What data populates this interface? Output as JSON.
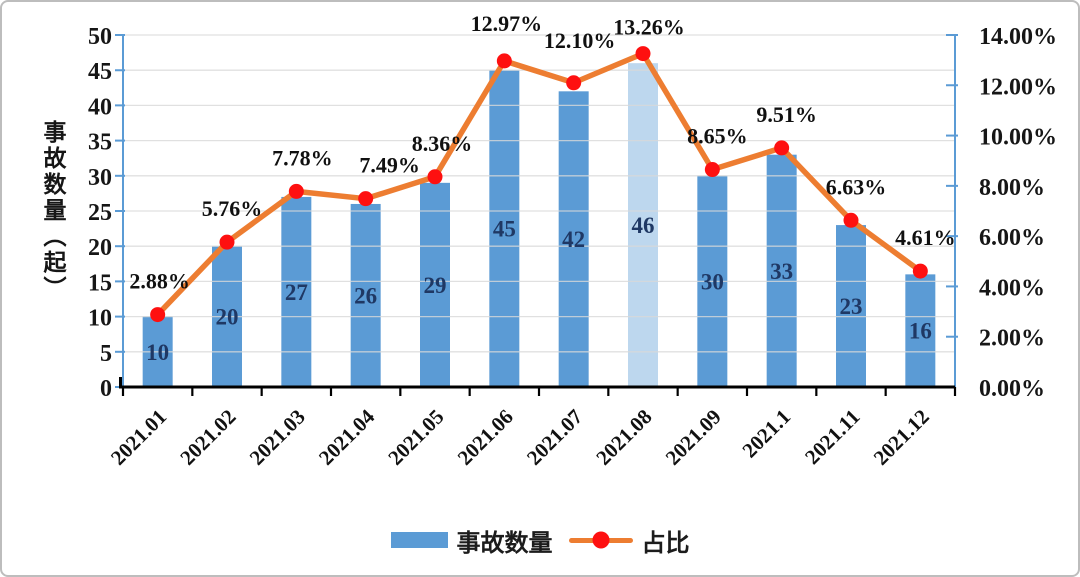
{
  "chart_data": {
    "type": "bar+line-combo",
    "categories": [
      "2021.01",
      "2021.02",
      "2021.03",
      "2021.04",
      "2021.05",
      "2021.06",
      "2021.07",
      "2021.08",
      "2021.09",
      "2021.1",
      "2021.11",
      "2021.12"
    ],
    "series": [
      {
        "name": "事故数量",
        "type": "bar",
        "axis": "left",
        "values": [
          10,
          20,
          27,
          26,
          29,
          45,
          42,
          46,
          30,
          33,
          23,
          16
        ],
        "highlight_index": 7
      },
      {
        "name": "占比",
        "type": "line",
        "axis": "right",
        "values": [
          2.88,
          5.76,
          7.78,
          7.49,
          8.36,
          12.97,
          12.1,
          13.26,
          8.65,
          9.51,
          6.63,
          4.61
        ],
        "labels": [
          "2.88%",
          "5.76%",
          "7.78%",
          "7.49%",
          "8.36%",
          "12.97%",
          "12.10%",
          "13.26%",
          "8.65%",
          "9.51%",
          "6.63%",
          "4.61%"
        ]
      }
    ],
    "left_axis": {
      "title": "事故数量（起）",
      "min": 0,
      "max": 50,
      "step": 5,
      "ticks": [
        "0",
        "5",
        "10",
        "15",
        "20",
        "25",
        "30",
        "35",
        "40",
        "45",
        "50"
      ]
    },
    "right_axis": {
      "min": 0,
      "max": 14,
      "step": 2,
      "ticks": [
        "0.00%",
        "2.00%",
        "4.00%",
        "6.00%",
        "8.00%",
        "10.00%",
        "12.00%",
        "14.00%"
      ]
    },
    "legend": [
      {
        "label": "事故数量",
        "type": "bar"
      },
      {
        "label": "占比",
        "type": "line"
      }
    ],
    "grid": "horizontal",
    "colors": {
      "bar": "#5B9BD5",
      "bar_highlight": "#BDD7EE",
      "line": "#ED7D31",
      "marker": "#FE1010",
      "grid": "#D9D9D9",
      "axis_blue": "#5B9BD5",
      "axis_black": "#000000",
      "bar_label": "#1F3864"
    }
  }
}
